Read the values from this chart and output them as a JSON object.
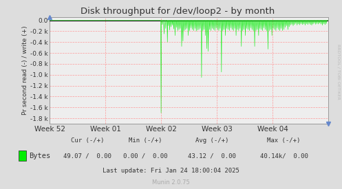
{
  "title": "Disk throughput for /dev/loop2 - by month",
  "ylabel": "Pr second read (-) / write (+)",
  "bg_color": "#DDDDDD",
  "plot_bg_color": "#EEEEEE",
  "grid_color": "#FF9999",
  "line_color": "#00EE00",
  "zero_line_color": "#CC0000",
  "border_color": "#AAAAAA",
  "x_tick_labels": [
    "Week 52",
    "Week 01",
    "Week 02",
    "Week 03",
    "Week 04"
  ],
  "x_tick_positions": [
    0,
    168,
    336,
    504,
    672
  ],
  "ylim": [
    -1900,
    60
  ],
  "yticks": [
    0,
    -200,
    -400,
    -600,
    -800,
    -1000,
    -1200,
    -1400,
    -1600,
    -1800
  ],
  "ytick_labels": [
    "0.0",
    "-0.2 k",
    "-0.4 k",
    "-0.6 k",
    "-0.8 k",
    "-1.0 k",
    "-1.2 k",
    "-1.4 k",
    "-1.6 k",
    "-1.8 k"
  ],
  "total_hours": 840,
  "legend_label": "Bytes",
  "cur_neg": "49.07",
  "cur_pos": "0.00",
  "min_neg": "0.00",
  "min_pos": "0.00",
  "avg_neg": "43.12",
  "avg_pos": "0.00",
  "max_neg": "40.14k",
  "max_pos": "0.00",
  "last_update": "Last update: Fri Jan 24 18:00:04 2025",
  "munin_version": "Munin 2.0.75",
  "rrdtool_label": "RRDTOOL / TOBI OETIKER",
  "spike_data": [
    [
      336,
      -1700
    ],
    [
      340,
      -80
    ],
    [
      345,
      -250
    ],
    [
      350,
      -150
    ],
    [
      355,
      -400
    ],
    [
      358,
      -100
    ],
    [
      362,
      -180
    ],
    [
      366,
      -120
    ],
    [
      370,
      -90
    ],
    [
      374,
      -160
    ],
    [
      378,
      -280
    ],
    [
      382,
      -130
    ],
    [
      386,
      -190
    ],
    [
      390,
      -170
    ],
    [
      394,
      -150
    ],
    [
      398,
      -480
    ],
    [
      402,
      -380
    ],
    [
      406,
      -190
    ],
    [
      410,
      -170
    ],
    [
      414,
      -150
    ],
    [
      418,
      -280
    ],
    [
      422,
      -190
    ],
    [
      426,
      -140
    ],
    [
      430,
      -170
    ],
    [
      434,
      -190
    ],
    [
      438,
      -150
    ],
    [
      442,
      -200
    ],
    [
      446,
      -180
    ],
    [
      450,
      -170
    ],
    [
      454,
      -150
    ],
    [
      458,
      -1050
    ],
    [
      462,
      -190
    ],
    [
      466,
      -170
    ],
    [
      470,
      -280
    ],
    [
      474,
      -520
    ],
    [
      478,
      -570
    ],
    [
      482,
      -170
    ],
    [
      486,
      -190
    ],
    [
      490,
      -150
    ],
    [
      494,
      -170
    ],
    [
      498,
      -190
    ],
    [
      502,
      -140
    ],
    [
      506,
      -170
    ],
    [
      510,
      -190
    ],
    [
      514,
      -150
    ],
    [
      518,
      -950
    ],
    [
      522,
      -190
    ],
    [
      526,
      -170
    ],
    [
      530,
      -280
    ],
    [
      534,
      -150
    ],
    [
      538,
      -170
    ],
    [
      542,
      -190
    ],
    [
      546,
      -140
    ],
    [
      550,
      -170
    ],
    [
      554,
      -190
    ],
    [
      558,
      -150
    ],
    [
      562,
      -280
    ],
    [
      566,
      -170
    ],
    [
      570,
      -190
    ],
    [
      574,
      -150
    ],
    [
      578,
      -480
    ],
    [
      582,
      -190
    ],
    [
      586,
      -170
    ],
    [
      590,
      -280
    ],
    [
      594,
      -150
    ],
    [
      598,
      -170
    ],
    [
      602,
      -190
    ],
    [
      606,
      -140
    ],
    [
      610,
      -170
    ],
    [
      614,
      -190
    ],
    [
      618,
      -480
    ],
    [
      622,
      -190
    ],
    [
      626,
      -170
    ],
    [
      630,
      -280
    ],
    [
      634,
      -150
    ],
    [
      638,
      -170
    ],
    [
      642,
      -190
    ],
    [
      646,
      -140
    ],
    [
      650,
      -170
    ],
    [
      654,
      -190
    ],
    [
      658,
      -530
    ],
    [
      662,
      -190
    ],
    [
      666,
      -170
    ],
    [
      670,
      -280
    ],
    [
      674,
      -150
    ],
    [
      678,
      -170
    ],
    [
      682,
      -190
    ],
    [
      686,
      -140
    ],
    [
      690,
      -170
    ],
    [
      694,
      -190
    ],
    [
      698,
      -150
    ],
    [
      702,
      -190
    ],
    [
      706,
      -170
    ],
    [
      710,
      -130
    ],
    [
      714,
      -100
    ],
    [
      718,
      -170
    ],
    [
      722,
      -120
    ],
    [
      726,
      -90
    ],
    [
      730,
      -75
    ],
    [
      734,
      -100
    ],
    [
      738,
      -80
    ],
    [
      742,
      -60
    ],
    [
      746,
      -90
    ],
    [
      750,
      -70
    ],
    [
      754,
      -85
    ],
    [
      758,
      -65
    ],
    [
      762,
      -80
    ],
    [
      766,
      -70
    ],
    [
      770,
      -90
    ],
    [
      774,
      -65
    ],
    [
      778,
      -80
    ],
    [
      782,
      -60
    ],
    [
      786,
      -80
    ],
    [
      790,
      -90
    ],
    [
      794,
      -70
    ],
    [
      798,
      -55
    ],
    [
      802,
      -75
    ],
    [
      806,
      -60
    ],
    [
      810,
      -70
    ],
    [
      814,
      -55
    ],
    [
      818,
      -70
    ],
    [
      822,
      -90
    ],
    [
      826,
      -65
    ],
    [
      830,
      -80
    ],
    [
      834,
      -60
    ]
  ]
}
